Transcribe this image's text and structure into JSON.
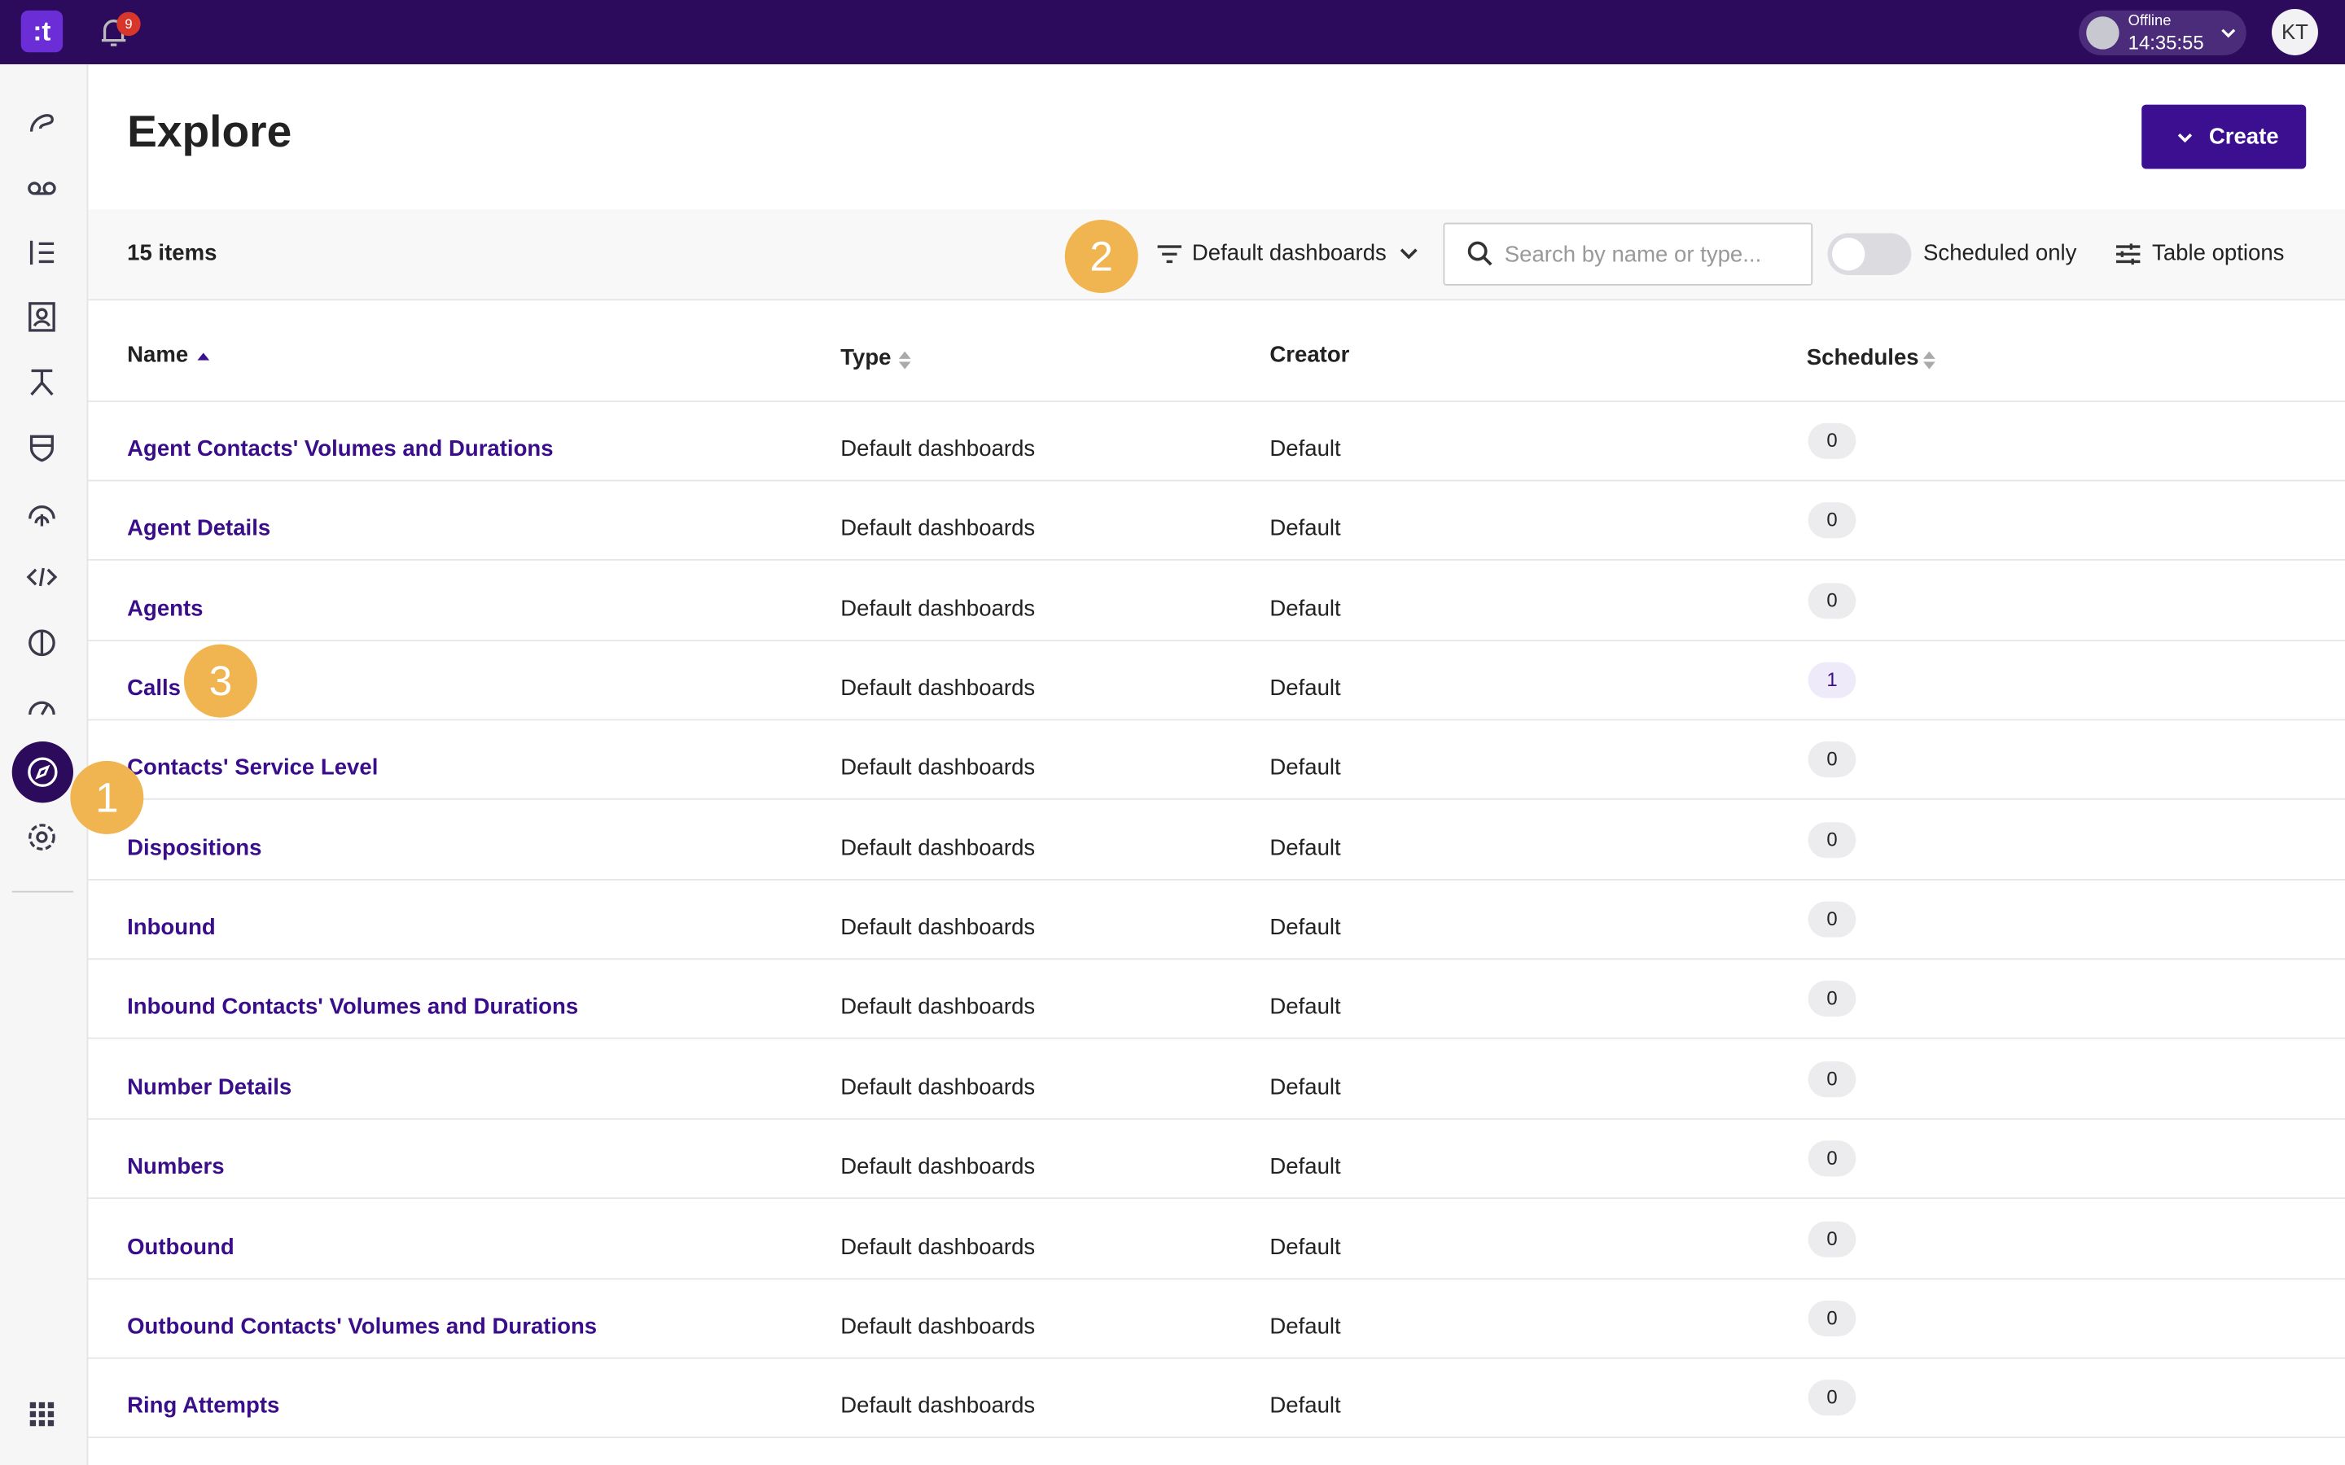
{
  "topbar": {
    "notifications": "9",
    "status": "Offline",
    "time": "14:35:55",
    "avatar": "KT"
  },
  "header": {
    "title": "Explore",
    "create_button": "Create"
  },
  "toolbar": {
    "item_count": "15 items",
    "filter": "Default dashboards",
    "search_placeholder": "Search by name or type...",
    "toggle_label": "Scheduled only",
    "table_options": "Table options"
  },
  "annotations": [
    "1",
    "2",
    "3"
  ],
  "table": {
    "columns": [
      "Name",
      "Type",
      "Creator",
      "Schedules"
    ],
    "rows": [
      [
        "Agent Contacts' Volumes and Durations",
        "Default dashboards",
        "Default",
        0
      ],
      [
        "Agent Details",
        "Default dashboards",
        "Default",
        0
      ],
      [
        "Agents",
        "Default dashboards",
        "Default",
        0
      ],
      [
        "Calls",
        "Default dashboards",
        "Default",
        1
      ],
      [
        "Contacts' Service Level",
        "Default dashboards",
        "Default",
        0
      ],
      [
        "Dispositions",
        "Default dashboards",
        "Default",
        0
      ],
      [
        "Inbound",
        "Default dashboards",
        "Default",
        0
      ],
      [
        "Inbound Contacts' Volumes and Durations",
        "Default dashboards",
        "Default",
        0
      ],
      [
        "Number Details",
        "Default dashboards",
        "Default",
        0
      ],
      [
        "Numbers",
        "Default dashboards",
        "Default",
        0
      ],
      [
        "Outbound",
        "Default dashboards",
        "Default",
        0
      ],
      [
        "Outbound Contacts' Volumes and Durations",
        "Default dashboards",
        "Default",
        0
      ],
      [
        "Ring Attempts",
        "Default dashboards",
        "Default",
        0
      ]
    ]
  }
}
